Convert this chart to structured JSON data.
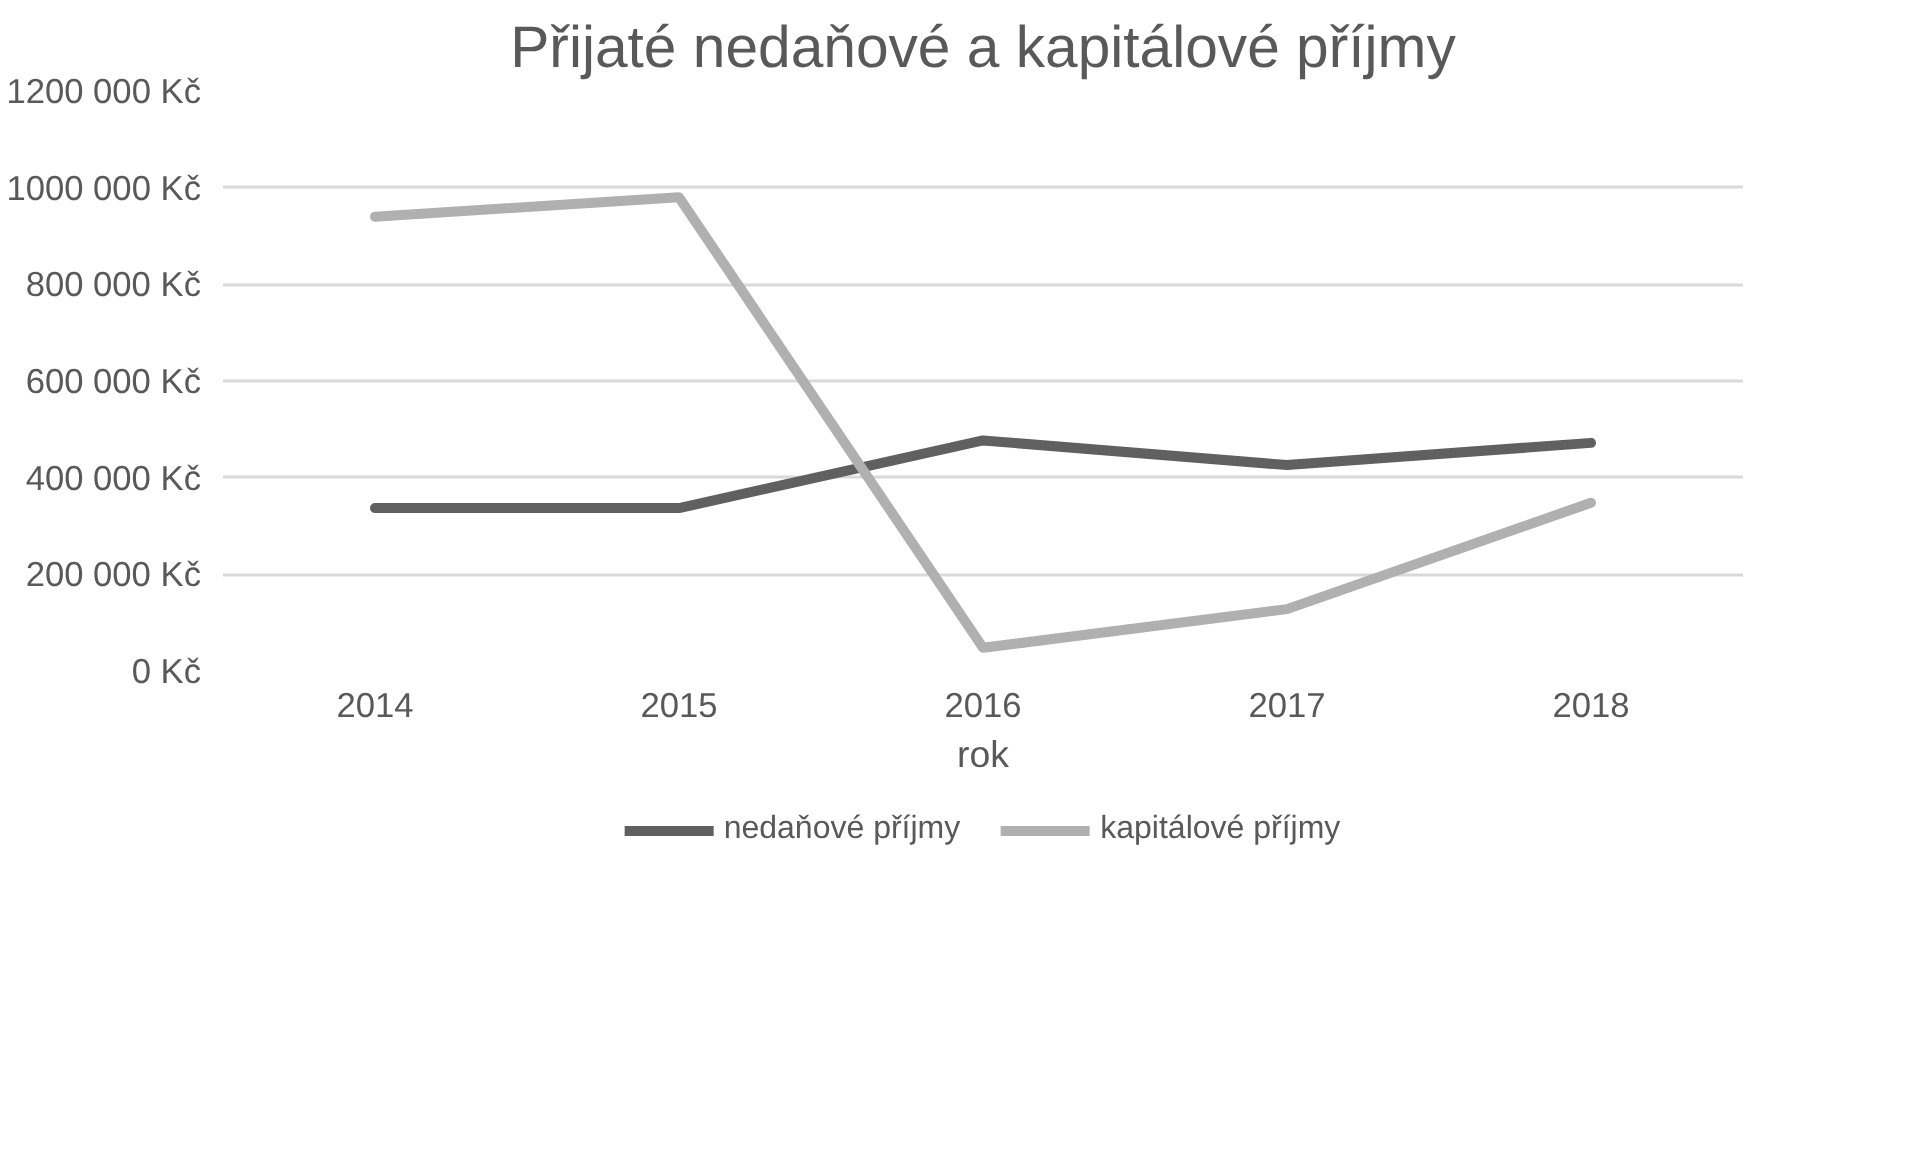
{
  "chart_data": {
    "type": "line",
    "title": "Přijaté nedaňové a kapitálové příjmy",
    "xlabel": "rok",
    "categories": [
      "2014",
      "2015",
      "2016",
      "2017",
      "2018"
    ],
    "series": [
      {
        "name": "nedaňové příjmy",
        "color": "#606060",
        "values": [
          337000,
          337000,
          477000,
          426000,
          472000
        ]
      },
      {
        "name": "kapitálové příjmy",
        "color": "#b0b0b0",
        "values": [
          940000,
          980000,
          48000,
          128000,
          348000
        ]
      }
    ],
    "ylim": [
      0,
      1200000
    ],
    "yticks": [
      {
        "value": 0,
        "label": "0 Kč"
      },
      {
        "value": 200000,
        "label": "200 000 Kč"
      },
      {
        "value": 400000,
        "label": "400 000 Kč"
      },
      {
        "value": 600000,
        "label": "600 000 Kč"
      },
      {
        "value": 800000,
        "label": "800 000 Kč"
      },
      {
        "value": 1000000,
        "label": "1000 000 Kč"
      },
      {
        "value": 1200000,
        "label": "1200 000 Kč"
      }
    ],
    "grid": "y",
    "legend": "bottom",
    "marker": "none",
    "line_style": "solid"
  }
}
